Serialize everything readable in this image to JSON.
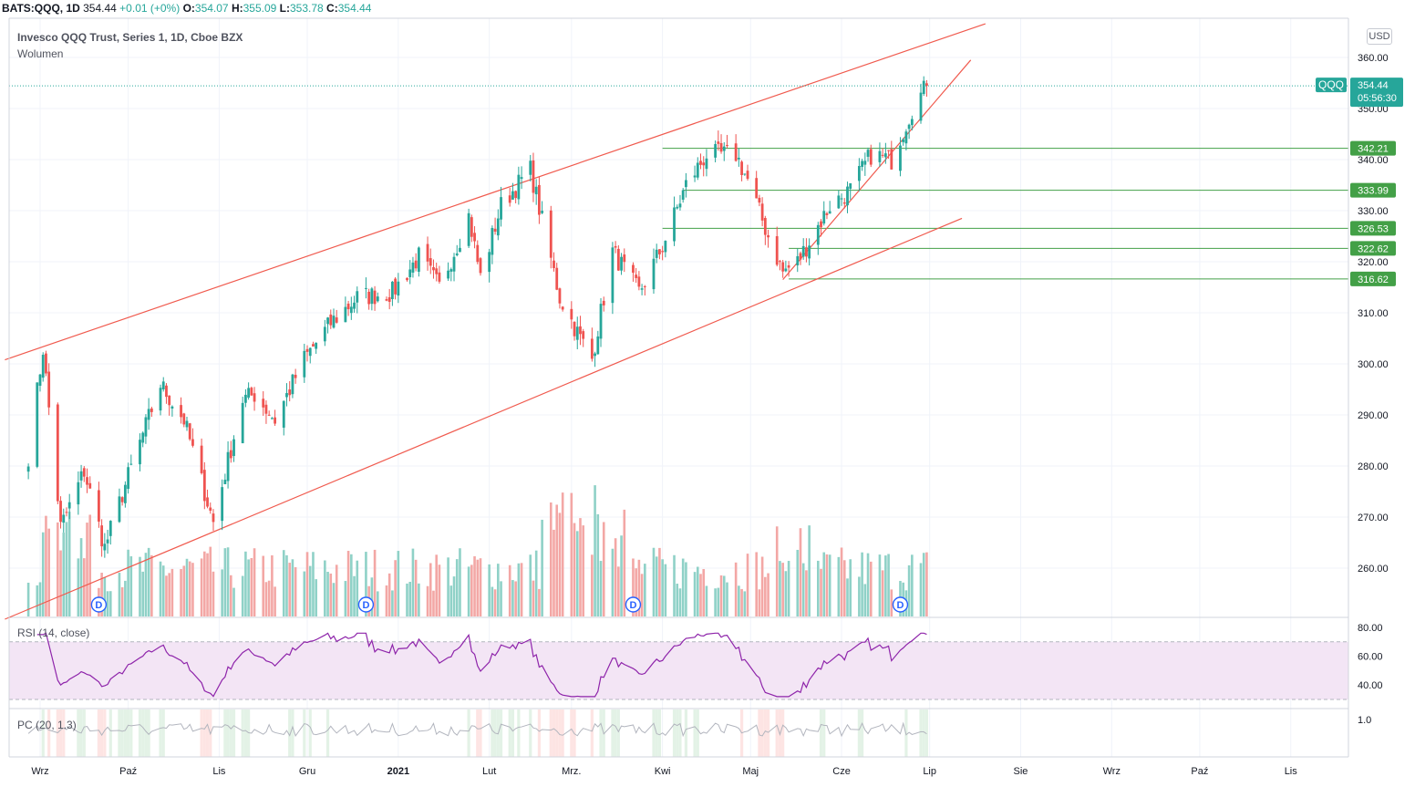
{
  "header": {
    "symbol": "BATS:QQQ, 1D",
    "last": "354.44",
    "change": "+0.01 (+0%)",
    "open_label": "O:",
    "open": "354.07",
    "high_label": "H:",
    "high": "355.09",
    "low_label": "L:",
    "low": "353.78",
    "close_label": "C:",
    "close": "354.44"
  },
  "main": {
    "title": "Invesco QQQ Trust, Series 1, 1D, Cboe BZX",
    "volume_label": "Wolumen",
    "currency": "USD",
    "price_badge": {
      "ticker": "QQQ",
      "price": "354.44",
      "countdown": "05:56:30"
    }
  },
  "rsi": {
    "label": "RSI (14, close)"
  },
  "pc": {
    "label": "PC (20, 1.3)"
  },
  "colors": {
    "up": "#26a69a",
    "down": "#ef5350",
    "up_vol": "#8fd1c7",
    "down_vol": "#f3a7a5",
    "trend": "#f05a4e",
    "level": "#43a047",
    "rsi": "#8e24aa",
    "rsi_band": "#f3e5f5"
  },
  "chart_data": {
    "type": "candlestick",
    "price_axis": {
      "min": 250,
      "max": 362,
      "ticks": [
        260,
        270,
        280,
        290,
        300,
        310,
        320,
        330,
        340,
        350,
        360
      ]
    },
    "time_axis": [
      "Wrz",
      "Paź",
      "Lis",
      "Gru",
      "2021",
      "Lut",
      "Mrz.",
      "Kwi",
      "Maj",
      "Cze",
      "Lip",
      "Sie",
      "Wrz",
      "Paź",
      "Lis"
    ],
    "price_anchors": [
      [
        "2020-08-28",
        282
      ],
      [
        "2020-09-02",
        303
      ],
      [
        "2020-09-08",
        268
      ],
      [
        "2020-09-16",
        279
      ],
      [
        "2020-09-23",
        264
      ],
      [
        "2020-10-01",
        278
      ],
      [
        "2020-10-12",
        296
      ],
      [
        "2020-10-20",
        289
      ],
      [
        "2020-10-30",
        269
      ],
      [
        "2020-11-09",
        293
      ],
      [
        "2020-11-13",
        294
      ],
      [
        "2020-11-20",
        289
      ],
      [
        "2020-11-30",
        301
      ],
      [
        "2020-12-09",
        308
      ],
      [
        "2020-12-18",
        313
      ],
      [
        "2020-12-30",
        314
      ],
      [
        "2021-01-08",
        321
      ],
      [
        "2021-01-15",
        315
      ],
      [
        "2021-01-25",
        329
      ],
      [
        "2021-01-29",
        317
      ],
      [
        "2021-02-05",
        331
      ],
      [
        "2021-02-12",
        336
      ],
      [
        "2021-02-15",
        338
      ],
      [
        "2021-02-25",
        313
      ],
      [
        "2021-03-04",
        305
      ],
      [
        "2021-03-08",
        301
      ],
      [
        "2021-03-15",
        322
      ],
      [
        "2021-03-24",
        314
      ],
      [
        "2021-04-01",
        323
      ],
      [
        "2021-04-09",
        335
      ],
      [
        "2021-04-16",
        341
      ],
      [
        "2021-04-26",
        341
      ],
      [
        "2021-04-30",
        336
      ],
      [
        "2021-05-07",
        325
      ],
      [
        "2021-05-12",
        318
      ],
      [
        "2021-05-17",
        320
      ],
      [
        "2021-05-28",
        331
      ],
      [
        "2021-06-04",
        334
      ],
      [
        "2021-06-11",
        341
      ],
      [
        "2021-06-18",
        340
      ],
      [
        "2021-06-25",
        350
      ],
      [
        "2021-06-30",
        354.44
      ]
    ],
    "volume_axis_note": "volume shown without scale",
    "horizontal_levels": [
      342.21,
      333.99,
      326.53,
      322.62,
      316.62
    ],
    "dividend_markers": [
      "2020-09-21",
      "2020-12-21",
      "2021-03-22",
      "2021-06-21"
    ],
    "rsi_axis": {
      "ticks": [
        40,
        60,
        80
      ],
      "bands": [
        30,
        70
      ]
    },
    "pc_axis": {
      "ticks": [
        1.0
      ]
    }
  }
}
